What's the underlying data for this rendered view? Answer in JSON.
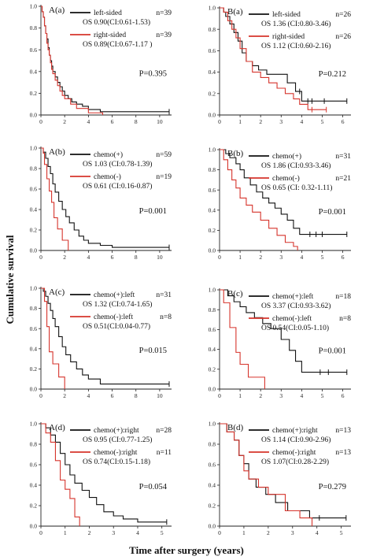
{
  "figure": {
    "ylabel": "Cumulative survival",
    "xlabel": "Time after surgery (years)",
    "colors": {
      "black": "#111111",
      "red": "#d6342c"
    }
  },
  "chart_data": [
    {
      "type": "line",
      "panel_label": "A(a)",
      "p_value": "P=0.395",
      "xlim": [
        0,
        11
      ],
      "ylim": [
        0,
        1
      ],
      "xticks": [
        0,
        2,
        4,
        6,
        8,
        10
      ],
      "yticks": [
        0.0,
        0.2,
        0.4,
        0.6,
        0.8,
        1.0
      ],
      "legend": [
        {
          "label": "left-sided",
          "n_text": "n=39",
          "os_text": "OS 0.90(CI:0.61-1.53)",
          "color": "black"
        },
        {
          "label": "right-sided",
          "n_text": "n=39",
          "os_text": "OS 0.89(CI:0.67-1.17 )",
          "color": "red"
        }
      ],
      "series": [
        {
          "name": "left-sided",
          "color": "black",
          "x": [
            0,
            0.1,
            0.2,
            0.3,
            0.4,
            0.5,
            0.6,
            0.7,
            0.8,
            0.9,
            1.0,
            1.2,
            1.4,
            1.6,
            1.8,
            2.0,
            2.3,
            2.6,
            3.0,
            3.5,
            4.0,
            5.0,
            10.8
          ],
          "y": [
            1.0,
            0.95,
            0.9,
            0.82,
            0.75,
            0.7,
            0.62,
            0.55,
            0.5,
            0.45,
            0.4,
            0.35,
            0.3,
            0.26,
            0.22,
            0.18,
            0.15,
            0.12,
            0.1,
            0.08,
            0.05,
            0.03,
            0.03
          ],
          "censor_x": [
            10.8
          ]
        },
        {
          "name": "right-sided",
          "color": "red",
          "x": [
            0,
            0.1,
            0.2,
            0.3,
            0.4,
            0.5,
            0.6,
            0.7,
            0.8,
            0.9,
            1.0,
            1.2,
            1.4,
            1.6,
            1.8,
            2.0,
            2.5,
            3.0,
            4.0,
            5.2
          ],
          "y": [
            1.0,
            0.95,
            0.9,
            0.82,
            0.75,
            0.66,
            0.6,
            0.55,
            0.48,
            0.42,
            0.38,
            0.32,
            0.27,
            0.22,
            0.18,
            0.15,
            0.1,
            0.06,
            0.02,
            0.0
          ],
          "censor_x": []
        }
      ]
    },
    {
      "type": "line",
      "panel_label": "B(a)",
      "p_value": "P=0.212",
      "xlim": [
        0,
        6.4
      ],
      "ylim": [
        0,
        1
      ],
      "xticks": [
        0,
        1,
        2,
        3,
        4,
        5,
        6
      ],
      "yticks": [
        0.0,
        0.2,
        0.4,
        0.6,
        0.8,
        1.0
      ],
      "legend": [
        {
          "label": "left-sided",
          "n_text": "n=26",
          "os_text": "OS 1.36 (CI:0.80-3.46)",
          "color": "black"
        },
        {
          "label": "right-sided",
          "n_text": "n=26",
          "os_text": "OS 1.12 (CI:0.60-2.16)",
          "color": "red"
        }
      ],
      "series": [
        {
          "name": "left-sided",
          "color": "black",
          "x": [
            0,
            0.2,
            0.3,
            0.5,
            0.7,
            0.9,
            1.1,
            1.3,
            1.6,
            1.9,
            2.3,
            2.8,
            3.3,
            3.7,
            4.0,
            4.5,
            5.2,
            6.2
          ],
          "y": [
            1.0,
            0.96,
            0.92,
            0.85,
            0.77,
            0.69,
            0.58,
            0.5,
            0.46,
            0.42,
            0.38,
            0.38,
            0.3,
            0.22,
            0.13,
            0.13,
            0.13,
            0.13
          ],
          "censor_x": [
            3.9,
            4.3,
            4.5,
            5.1,
            6.2
          ]
        },
        {
          "name": "right-sided",
          "color": "red",
          "x": [
            0,
            0.2,
            0.4,
            0.6,
            0.8,
            1.0,
            1.3,
            1.6,
            2.0,
            2.4,
            2.8,
            3.2,
            3.6,
            3.9,
            4.3,
            5.2
          ],
          "y": [
            1.0,
            0.96,
            0.88,
            0.8,
            0.72,
            0.62,
            0.5,
            0.4,
            0.35,
            0.3,
            0.25,
            0.2,
            0.15,
            0.1,
            0.05,
            0.05
          ],
          "censor_x": [
            4.5,
            5.2
          ]
        }
      ]
    },
    {
      "type": "line",
      "panel_label": "A(b)",
      "p_value": "P=0.001",
      "xlim": [
        0,
        11
      ],
      "ylim": [
        0,
        1
      ],
      "xticks": [
        0,
        2,
        4,
        6,
        8,
        10
      ],
      "yticks": [
        0.0,
        0.2,
        0.4,
        0.6,
        0.8,
        1.0
      ],
      "legend": [
        {
          "label": "chemo(+)",
          "n_text": "n=59",
          "os_text": "OS 1.03 (CI:0.78-1.39)",
          "color": "black"
        },
        {
          "label": "chemo(-)",
          "n_text": "n=19",
          "os_text": "OS 0.61 (CI:0.16-0.87)",
          "color": "red"
        }
      ],
      "series": [
        {
          "name": "chemo(+)",
          "color": "black",
          "x": [
            0,
            0.2,
            0.4,
            0.6,
            0.8,
            1.0,
            1.2,
            1.5,
            1.8,
            2.1,
            2.4,
            2.8,
            3.2,
            3.6,
            4.0,
            5.0,
            6.0,
            10.8
          ],
          "y": [
            1.0,
            0.96,
            0.9,
            0.82,
            0.75,
            0.65,
            0.57,
            0.48,
            0.4,
            0.33,
            0.27,
            0.2,
            0.14,
            0.1,
            0.07,
            0.05,
            0.03,
            0.03
          ],
          "censor_x": [
            10.8
          ]
        },
        {
          "name": "chemo(-)",
          "color": "red",
          "x": [
            0,
            0.2,
            0.3,
            0.5,
            0.7,
            0.9,
            1.1,
            1.4,
            1.8,
            2.3
          ],
          "y": [
            1.0,
            0.95,
            0.84,
            0.7,
            0.58,
            0.47,
            0.32,
            0.21,
            0.1,
            0.0
          ],
          "censor_x": []
        }
      ]
    },
    {
      "type": "line",
      "panel_label": "B(b)",
      "p_value": "P=0.001",
      "xlim": [
        0,
        6.4
      ],
      "ylim": [
        0,
        1
      ],
      "xticks": [
        0,
        1,
        2,
        3,
        4,
        5,
        6
      ],
      "yticks": [
        0.0,
        0.2,
        0.4,
        0.6,
        0.8,
        1.0
      ],
      "legend": [
        {
          "label": "chemo(+)",
          "n_text": "n=31",
          "os_text": "OS 1.86 (CI:0.93-3.46)",
          "color": "black"
        },
        {
          "label": "chemo(-)",
          "n_text": "n=21",
          "os_text": "OS 0.65 (CI: 0.32-1.11)",
          "color": "red"
        }
      ],
      "series": [
        {
          "name": "chemo(+)",
          "color": "black",
          "x": [
            0,
            0.3,
            0.5,
            0.8,
            1.0,
            1.2,
            1.5,
            1.8,
            2.1,
            2.4,
            2.7,
            3.0,
            3.3,
            3.6,
            3.9,
            4.5,
            6.2
          ],
          "y": [
            1.0,
            0.96,
            0.92,
            0.86,
            0.8,
            0.72,
            0.65,
            0.58,
            0.52,
            0.47,
            0.42,
            0.36,
            0.3,
            0.22,
            0.16,
            0.16,
            0.16
          ],
          "censor_x": [
            4.4,
            4.7,
            5.0,
            6.2
          ]
        },
        {
          "name": "chemo(-)",
          "color": "red",
          "x": [
            0,
            0.2,
            0.4,
            0.6,
            0.8,
            1.0,
            1.3,
            1.6,
            2.0,
            2.4,
            2.8,
            3.2,
            3.6,
            3.8
          ],
          "y": [
            1.0,
            0.9,
            0.8,
            0.7,
            0.62,
            0.52,
            0.45,
            0.38,
            0.3,
            0.22,
            0.15,
            0.08,
            0.04,
            0.0
          ],
          "censor_x": []
        }
      ]
    },
    {
      "type": "line",
      "panel_label": "A(c)",
      "p_value": "P=0.015",
      "xlim": [
        0,
        11
      ],
      "ylim": [
        0,
        1
      ],
      "xticks": [
        0,
        2,
        4,
        6,
        8,
        10
      ],
      "yticks": [
        0.0,
        0.2,
        0.4,
        0.6,
        0.8,
        1.0
      ],
      "legend": [
        {
          "label": "chemo(+):left",
          "n_text": "n=31",
          "os_text": "OS 1.32 (CI:0.74-1.65)",
          "color": "black"
        },
        {
          "label": "chemo(-):left",
          "n_text": "n=8",
          "os_text": "OS 0.51(CI:0.04-0.77)",
          "color": "red"
        }
      ],
      "series": [
        {
          "name": "chemo(+):left",
          "color": "black",
          "x": [
            0,
            0.2,
            0.4,
            0.6,
            0.8,
            1.0,
            1.2,
            1.5,
            1.8,
            2.1,
            2.5,
            3.0,
            3.5,
            4.0,
            5.0,
            6.0,
            10.8
          ],
          "y": [
            1.0,
            0.97,
            0.92,
            0.85,
            0.78,
            0.7,
            0.62,
            0.52,
            0.42,
            0.34,
            0.27,
            0.2,
            0.14,
            0.1,
            0.05,
            0.05,
            0.05
          ],
          "censor_x": [
            10.8
          ]
        },
        {
          "name": "chemo(-):left",
          "color": "red",
          "x": [
            0,
            0.3,
            0.5,
            0.7,
            1.0,
            1.5,
            2.0
          ],
          "y": [
            1.0,
            0.87,
            0.62,
            0.37,
            0.25,
            0.12,
            0.0
          ],
          "censor_x": []
        }
      ]
    },
    {
      "type": "line",
      "panel_label": "B(c)",
      "p_value": "P=0.001",
      "xlim": [
        0,
        6.4
      ],
      "ylim": [
        0,
        1
      ],
      "xticks": [
        0,
        1,
        2,
        3,
        4,
        5,
        6
      ],
      "yticks": [
        0.0,
        0.2,
        0.4,
        0.6,
        0.8,
        1.0
      ],
      "legend": [
        {
          "label": "chemo(+):left",
          "n_text": "n=18",
          "os_text": "OS 3.37 (CI:0.93-3.62)",
          "color": "black"
        },
        {
          "label": "chemo(-):left",
          "n_text": "n=8",
          "os_text": "OS 0.54(CI:0.05-1.10)",
          "color": "red"
        }
      ],
      "series": [
        {
          "name": "chemo(+):left",
          "color": "black",
          "x": [
            0,
            0.4,
            0.7,
            1.0,
            1.3,
            1.7,
            2.1,
            2.5,
            3.0,
            3.4,
            3.7,
            4.0,
            4.4,
            6.2
          ],
          "y": [
            1.0,
            0.94,
            0.88,
            0.83,
            0.77,
            0.72,
            0.66,
            0.61,
            0.5,
            0.39,
            0.28,
            0.17,
            0.17,
            0.17
          ],
          "censor_x": [
            4.9,
            5.3,
            6.2
          ]
        },
        {
          "name": "chemo(-):left",
          "color": "red",
          "x": [
            0,
            0.2,
            0.5,
            0.8,
            1.0,
            1.4,
            2.2
          ],
          "y": [
            1.0,
            0.87,
            0.62,
            0.37,
            0.25,
            0.12,
            0.0
          ],
          "censor_x": []
        }
      ]
    },
    {
      "type": "line",
      "panel_label": "A(d)",
      "p_value": "P=0.054",
      "xlim": [
        0,
        5.4
      ],
      "ylim": [
        0,
        1
      ],
      "xticks": [
        0,
        1,
        2,
        3,
        4,
        5
      ],
      "yticks": [
        0.0,
        0.2,
        0.4,
        0.6,
        0.8,
        1.0
      ],
      "legend": [
        {
          "label": "chemo(+):right",
          "n_text": "n=28",
          "os_text": "OS 0.95 (CI:0.77-1.25)",
          "color": "black"
        },
        {
          "label": "chemo(-):right",
          "n_text": "n=11",
          "os_text": "OS 0.74(CI:0.15-1.18)",
          "color": "red"
        }
      ],
      "series": [
        {
          "name": "chemo(+):right",
          "color": "black",
          "x": [
            0,
            0.2,
            0.4,
            0.6,
            0.8,
            1.0,
            1.2,
            1.4,
            1.7,
            2.0,
            2.3,
            2.6,
            3.0,
            3.4,
            4.0,
            5.2
          ],
          "y": [
            1.0,
            0.96,
            0.89,
            0.82,
            0.71,
            0.6,
            0.5,
            0.42,
            0.35,
            0.28,
            0.21,
            0.14,
            0.1,
            0.07,
            0.04,
            0.04
          ],
          "censor_x": [
            5.2
          ]
        },
        {
          "name": "chemo(-):right",
          "color": "red",
          "x": [
            0,
            0.2,
            0.4,
            0.6,
            0.8,
            1.0,
            1.2,
            1.4,
            1.6
          ],
          "y": [
            1.0,
            0.91,
            0.82,
            0.64,
            0.45,
            0.36,
            0.27,
            0.09,
            0.0
          ],
          "censor_x": []
        }
      ]
    },
    {
      "type": "line",
      "panel_label": "B(d)",
      "p_value": "P=0.279",
      "xlim": [
        0,
        5.4
      ],
      "ylim": [
        0,
        1
      ],
      "xticks": [
        0,
        1,
        2,
        3,
        4,
        5
      ],
      "yticks": [
        0.0,
        0.2,
        0.4,
        0.6,
        0.8,
        1.0
      ],
      "legend": [
        {
          "label": "chemo(+):right",
          "n_text": "n=13",
          "os_text": "OS 1.14 (CI:0.90-2.96)",
          "color": "black"
        },
        {
          "label": "chemo(-):right",
          "n_text": "n=13",
          "os_text": "OS 1.07(CI:0.28-2.29)",
          "color": "red"
        }
      ],
      "series": [
        {
          "name": "chemo(+):right",
          "color": "black",
          "x": [
            0,
            0.3,
            0.6,
            0.8,
            1.0,
            1.2,
            1.5,
            1.9,
            2.3,
            2.8,
            3.2,
            3.7,
            5.2
          ],
          "y": [
            1.0,
            0.92,
            0.84,
            0.69,
            0.61,
            0.46,
            0.38,
            0.31,
            0.23,
            0.15,
            0.15,
            0.08,
            0.08
          ],
          "censor_x": [
            4.1,
            5.2
          ]
        },
        {
          "name": "chemo(-):right",
          "color": "red",
          "x": [
            0,
            0.3,
            0.6,
            0.8,
            1.0,
            1.2,
            1.6,
            2.0,
            2.7,
            3.3,
            3.8
          ],
          "y": [
            1.0,
            0.92,
            0.84,
            0.69,
            0.54,
            0.46,
            0.38,
            0.31,
            0.15,
            0.08,
            0.0
          ],
          "censor_x": []
        }
      ]
    }
  ]
}
